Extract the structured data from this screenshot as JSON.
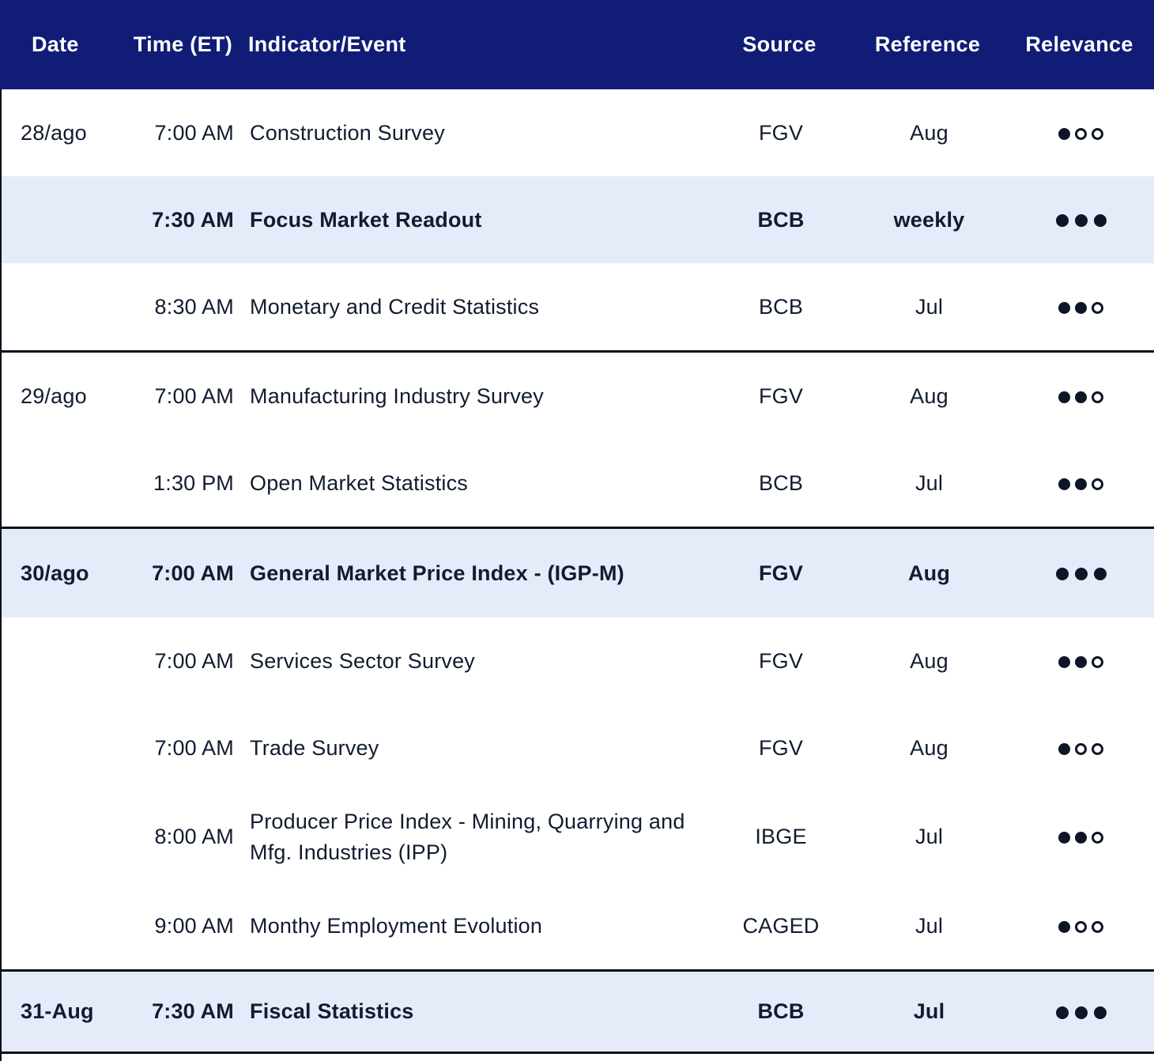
{
  "colors": {
    "header_bg": "#101c76",
    "header_text": "#ffffff",
    "highlight_bg": "#e5ebf8",
    "border": "#0a0f1e",
    "text": "#111c30",
    "dot": "#0d1526"
  },
  "table": {
    "columns": [
      "Date",
      "Time (ET)",
      "Indicator/Event",
      "Source",
      "Reference",
      "Relevance"
    ],
    "relevance_max": 3,
    "rows": [
      {
        "date": "28/ago",
        "time": "7:00 AM",
        "indicator": "Construction Survey",
        "source": "FGV",
        "reference": "Aug",
        "relevance": 1
      },
      {
        "date": "",
        "time": "7:30 AM",
        "indicator": "Focus Market Readout",
        "source": "BCB",
        "reference": "weekly",
        "relevance": 3
      },
      {
        "date": "",
        "time": "8:30 AM",
        "indicator": "Monetary and Credit Statistics",
        "source": "BCB",
        "reference": "Jul",
        "relevance": 2
      },
      {
        "date": "29/ago",
        "time": "7:00 AM",
        "indicator": "Manufacturing Industry Survey",
        "source": "FGV",
        "reference": "Aug",
        "relevance": 2
      },
      {
        "date": "",
        "time": "1:30 PM",
        "indicator": "Open Market Statistics",
        "source": "BCB",
        "reference": "Jul",
        "relevance": 2
      },
      {
        "date": "30/ago",
        "time": "7:00 AM",
        "indicator": "General Market Price Index - (IGP-M)",
        "source": "FGV",
        "reference": "Aug",
        "relevance": 3
      },
      {
        "date": "",
        "time": "7:00 AM",
        "indicator": "Services Sector Survey",
        "source": "FGV",
        "reference": "Aug",
        "relevance": 2
      },
      {
        "date": "",
        "time": "7:00 AM",
        "indicator": "Trade Survey",
        "source": "FGV",
        "reference": "Aug",
        "relevance": 1
      },
      {
        "date": "",
        "time": "8:00 AM",
        "indicator": "Producer Price Index - Mining, Quarrying and Mfg. Industries (IPP)",
        "source": "IBGE",
        "reference": "Jul",
        "relevance": 2
      },
      {
        "date": "",
        "time": "9:00 AM",
        "indicator": "Monthy Employment Evolution",
        "source": "CAGED",
        "reference": "Jul",
        "relevance": 1
      },
      {
        "date": "31-Aug",
        "time": "7:30 AM",
        "indicator": "Fiscal Statistics",
        "source": "BCB",
        "reference": "Jul",
        "relevance": 3
      }
    ]
  }
}
